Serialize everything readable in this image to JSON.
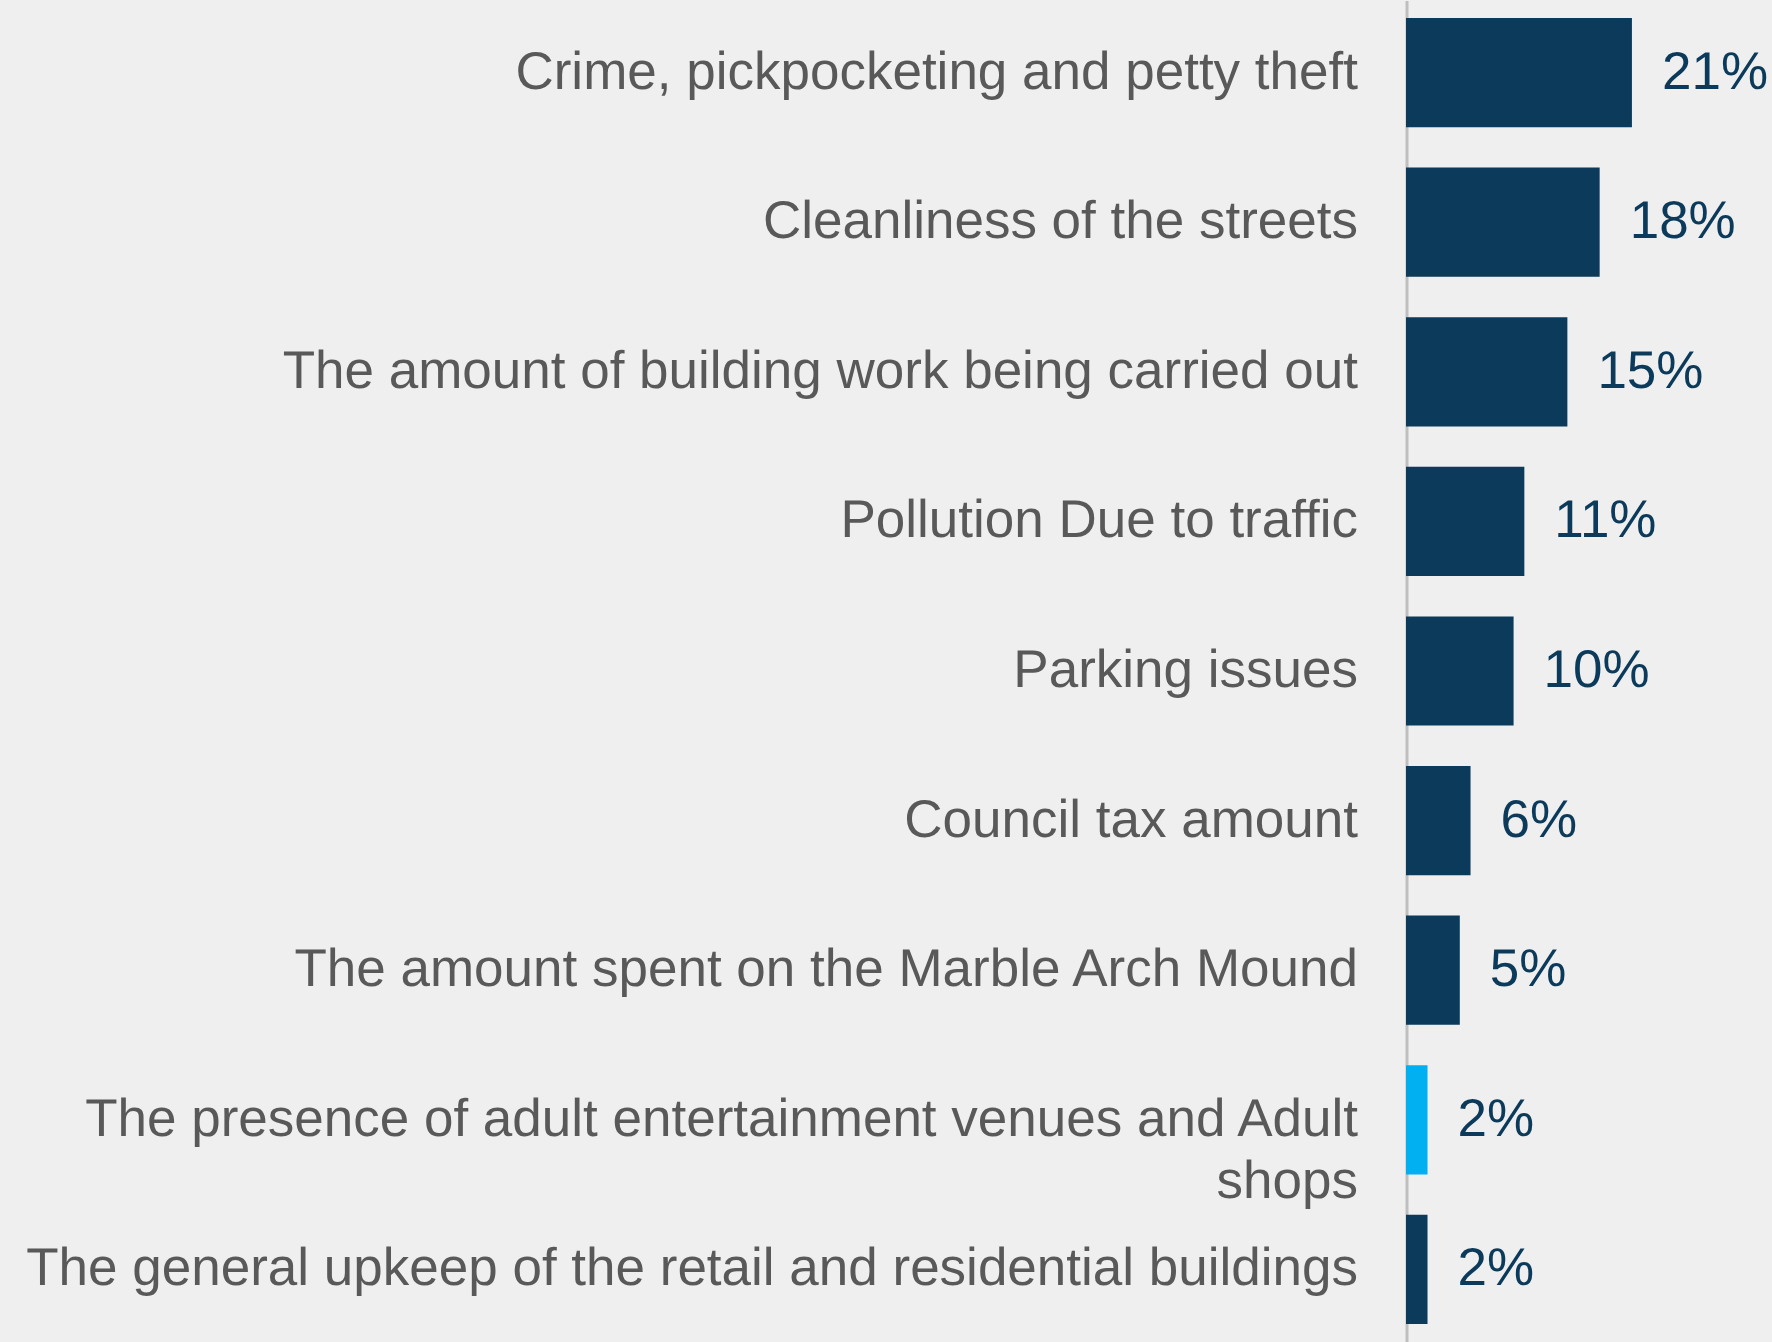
{
  "chart_data": {
    "type": "bar",
    "orientation": "horizontal",
    "categories": [
      "Crime, pickpocketing and petty theft",
      "Cleanliness of the streets",
      "The amount of building work being carried out",
      "Pollution Due to traffic",
      "Parking issues",
      "Council tax amount",
      "The amount spent on the Marble Arch Mound",
      "The presence of adult entertainment venues and Adult shops",
      "The general upkeep of the retail and residential buildings"
    ],
    "values": [
      21,
      18,
      15,
      11,
      10,
      6,
      5,
      2,
      2
    ],
    "colors": [
      "#0b3a5a",
      "#0b3a5a",
      "#0b3a5a",
      "#0b3a5a",
      "#0b3a5a",
      "#0b3a5a",
      "#0b3a5a",
      "#00b0f0",
      "#0b3a5a"
    ],
    "value_labels": [
      "21%",
      "18%",
      "15%",
      "11%",
      "10%",
      "6%",
      "5%",
      "2%",
      "2%"
    ]
  }
}
